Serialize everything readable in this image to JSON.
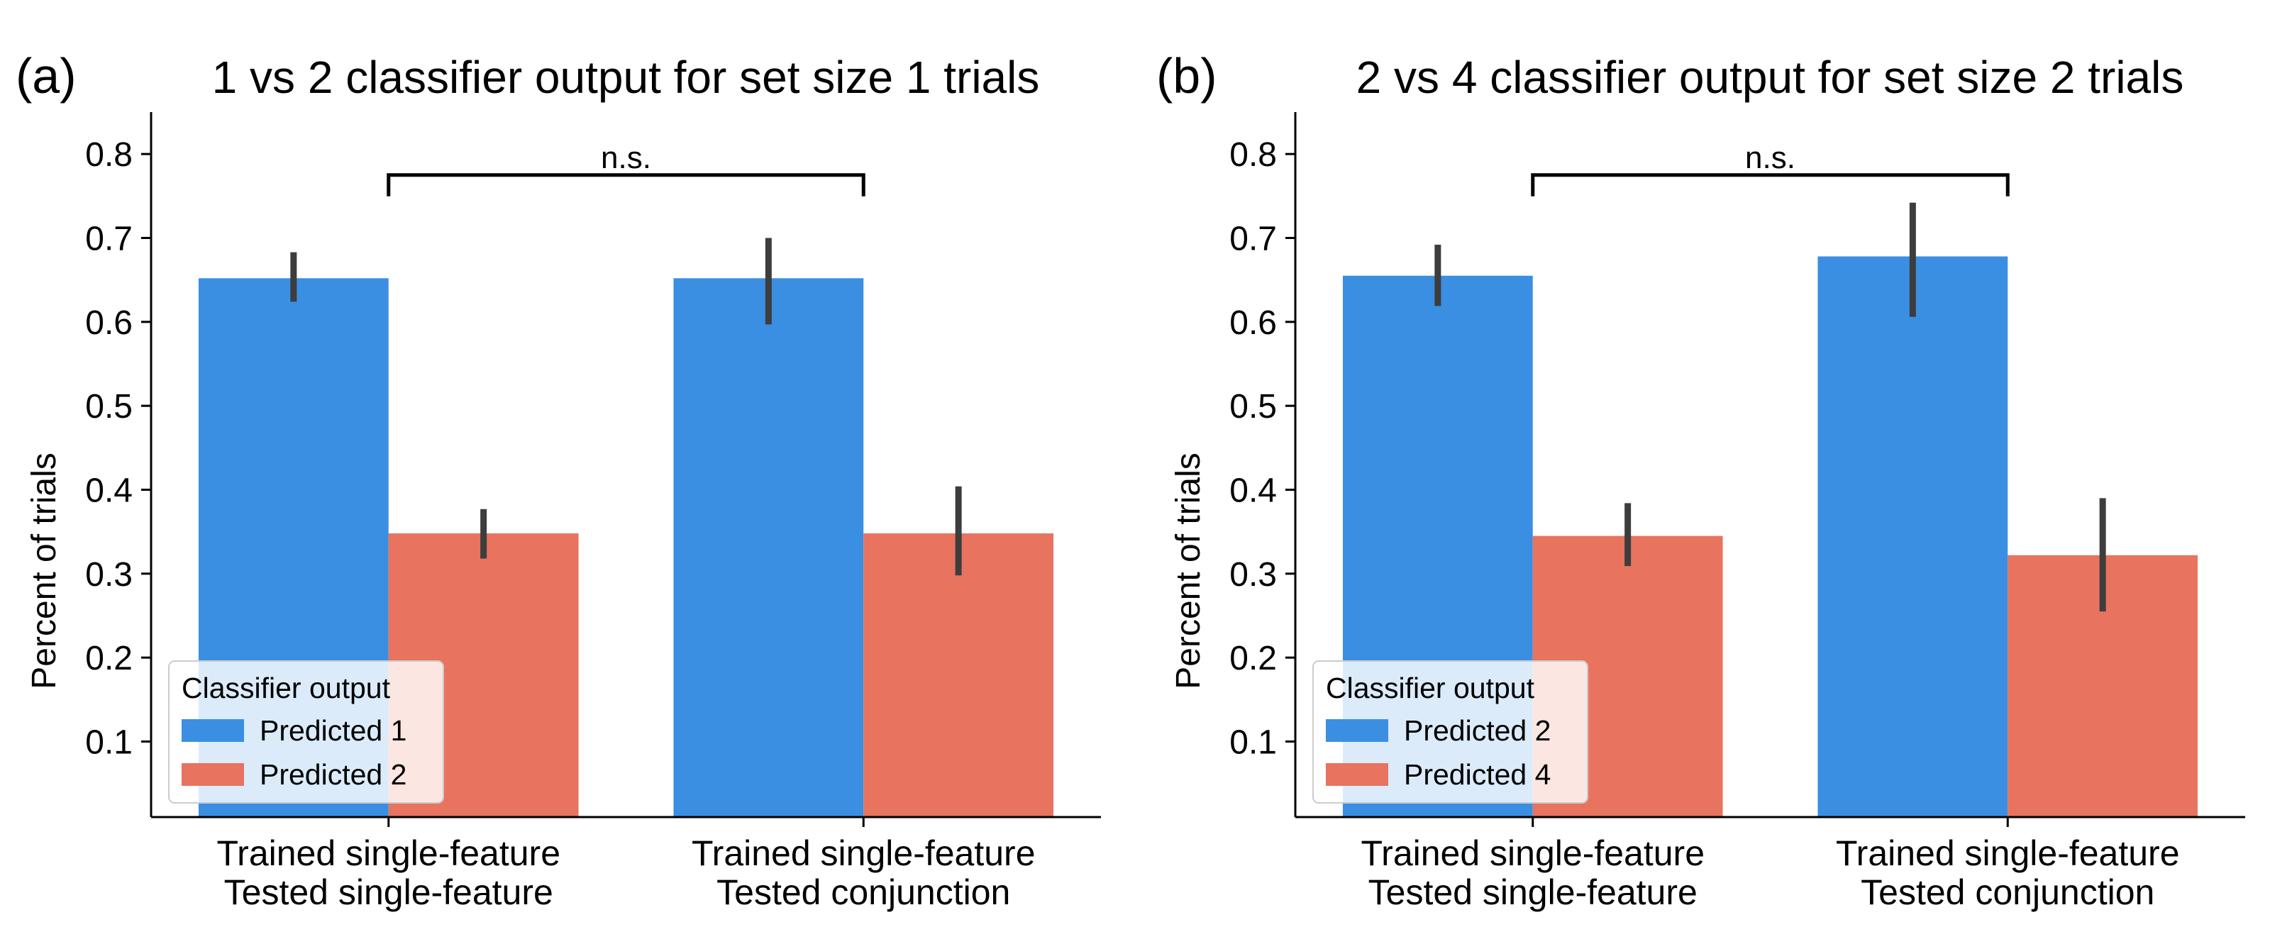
{
  "figure": {
    "background": "#ffffff"
  },
  "chart_data": [
    {
      "panel_label": "(a)",
      "type": "bar",
      "title": "1 vs 2 classifier output for set size 1 trials",
      "xlabel": "",
      "ylabel": "Percent of trials",
      "ylim": [
        0.01,
        0.85
      ],
      "yticks": [
        "0.1",
        "0.2",
        "0.3",
        "0.4",
        "0.5",
        "0.6",
        "0.7",
        "0.8"
      ],
      "categories": [
        [
          "Trained single-feature",
          "Tested single-feature"
        ],
        [
          "Trained single-feature",
          "Tested conjunction"
        ]
      ],
      "series": [
        {
          "name": "Predicted 1",
          "color": "#3a8fe3",
          "values": [
            0.652,
            0.652
          ],
          "err_low": [
            0.624,
            0.597
          ],
          "err_high": [
            0.683,
            0.7
          ]
        },
        {
          "name": "Predicted 2",
          "color": "#e8735f",
          "values": [
            0.348,
            0.348
          ],
          "err_low": [
            0.318,
            0.298
          ],
          "err_high": [
            0.377,
            0.404
          ]
        }
      ],
      "legend": {
        "title": "Classifier output",
        "position": "lower-left"
      },
      "annotation": {
        "text": "n.s.",
        "from_category": 0,
        "to_category": 1,
        "y": 0.775
      }
    },
    {
      "panel_label": "(b)",
      "type": "bar",
      "title": "2 vs 4 classifier output for set size 2 trials",
      "xlabel": "",
      "ylabel": "Percent of trials",
      "ylim": [
        0.01,
        0.85
      ],
      "yticks": [
        "0.1",
        "0.2",
        "0.3",
        "0.4",
        "0.5",
        "0.6",
        "0.7",
        "0.8"
      ],
      "categories": [
        [
          "Trained single-feature",
          "Tested single-feature"
        ],
        [
          "Trained single-feature",
          "Tested conjunction"
        ]
      ],
      "series": [
        {
          "name": "Predicted 2",
          "color": "#3a8fe3",
          "values": [
            0.655,
            0.678
          ],
          "err_low": [
            0.619,
            0.606
          ],
          "err_high": [
            0.692,
            0.742
          ]
        },
        {
          "name": "Predicted 4",
          "color": "#e8735f",
          "values": [
            0.345,
            0.322
          ],
          "err_low": [
            0.309,
            0.255
          ],
          "err_high": [
            0.384,
            0.39
          ]
        }
      ],
      "legend": {
        "title": "Classifier output",
        "position": "lower-left"
      },
      "annotation": {
        "text": "n.s.",
        "from_category": 0,
        "to_category": 1,
        "y": 0.775
      }
    }
  ]
}
